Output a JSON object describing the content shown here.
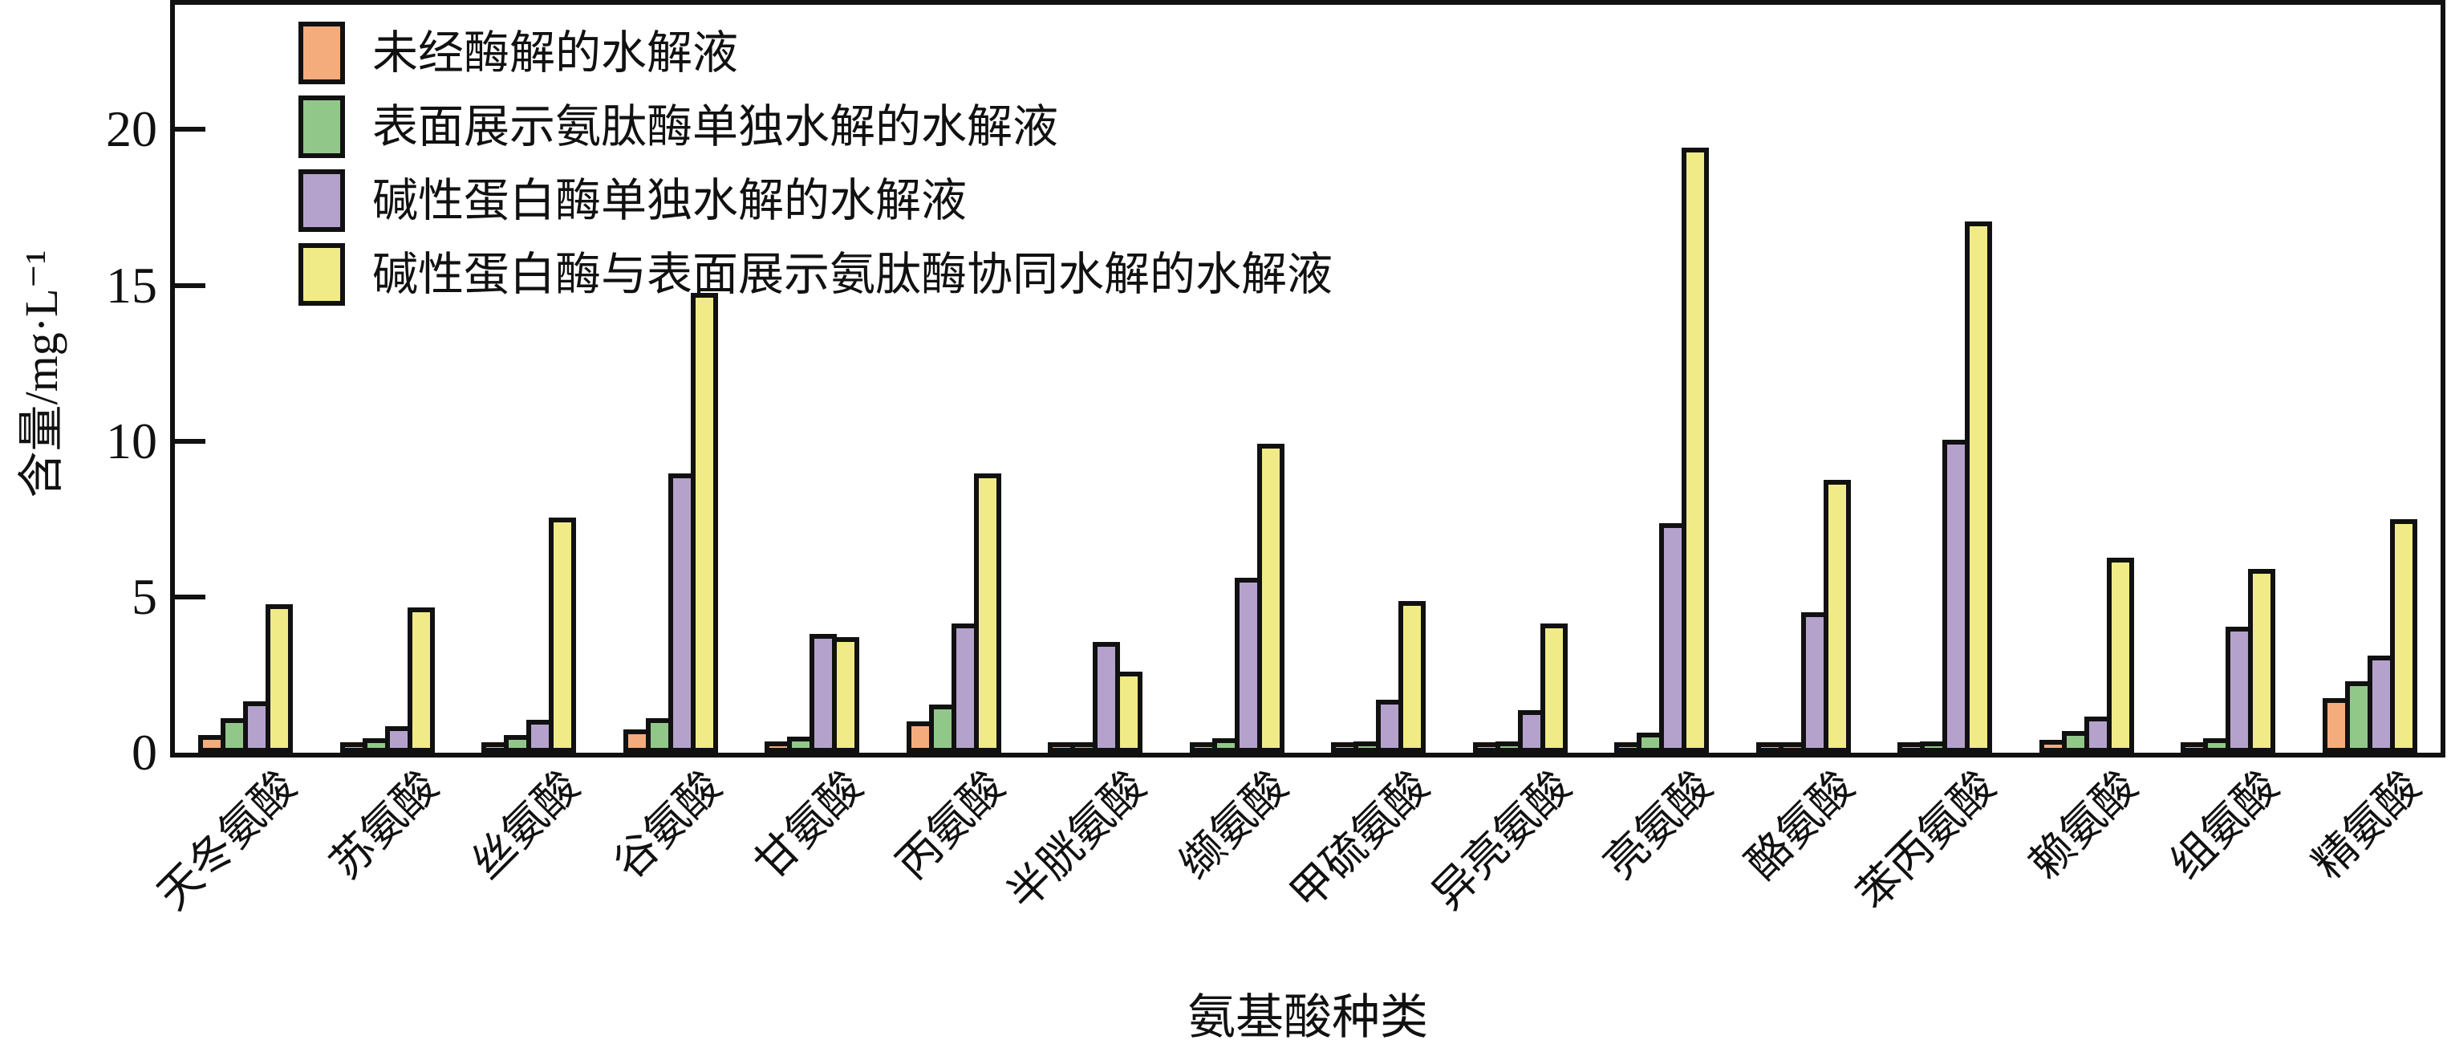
{
  "figure": {
    "background": "#ffffff",
    "frame_color": "#111111"
  },
  "chart_data": {
    "type": "bar",
    "title": "",
    "xlabel": "氨基酸种类",
    "ylabel": "含量/mg·L⁻¹",
    "ylim": [
      0,
      24
    ],
    "yticks": [
      0,
      5,
      10,
      15,
      20
    ],
    "grid": false,
    "legend_position": "top-left-inside",
    "bar_outline_color": "#111111",
    "categories": [
      "天冬氨酸",
      "苏氨酸",
      "丝氨酸",
      "谷氨酸",
      "甘氨酸",
      "丙氨酸",
      "半胱氨酸",
      "缬氨酸",
      "甲硫氨酸",
      "异亮氨酸",
      "亮氨酸",
      "酪氨酸",
      "苯丙氨酸",
      "赖氨酸",
      "组氨酸",
      "精氨酸"
    ],
    "series": [
      {
        "name": "未经酶解的水解液",
        "color": "#F5AC7C",
        "values": [
          0.4,
          0.1,
          0.1,
          0.6,
          0.2,
          0.85,
          0.02,
          0.1,
          0.1,
          0.05,
          0.05,
          0.1,
          0.1,
          0.25,
          0.1,
          1.6
        ]
      },
      {
        "name": "表面展示氨肽酶单独水解的水解液",
        "color": "#92C78A",
        "values": [
          0.95,
          0.3,
          0.4,
          0.95,
          0.35,
          1.4,
          0.05,
          0.3,
          0.2,
          0.2,
          0.5,
          0.15,
          0.2,
          0.55,
          0.3,
          2.15
        ]
      },
      {
        "name": "碱性蛋白酶单独水解的水解液",
        "color": "#B4A2CC",
        "values": [
          1.5,
          0.7,
          0.9,
          8.8,
          3.65,
          4.0,
          3.4,
          5.45,
          1.55,
          1.2,
          7.2,
          4.35,
          9.9,
          1.0,
          3.9,
          2.95
        ]
      },
      {
        "name": "碱性蛋白酶与表面展示氨肽酶协同水解的水解液",
        "color": "#F0EB86",
        "values": [
          4.6,
          4.5,
          7.4,
          14.6,
          3.55,
          8.8,
          2.45,
          9.75,
          4.7,
          4.0,
          19.25,
          8.6,
          16.9,
          6.1,
          5.75,
          7.35
        ]
      }
    ]
  }
}
